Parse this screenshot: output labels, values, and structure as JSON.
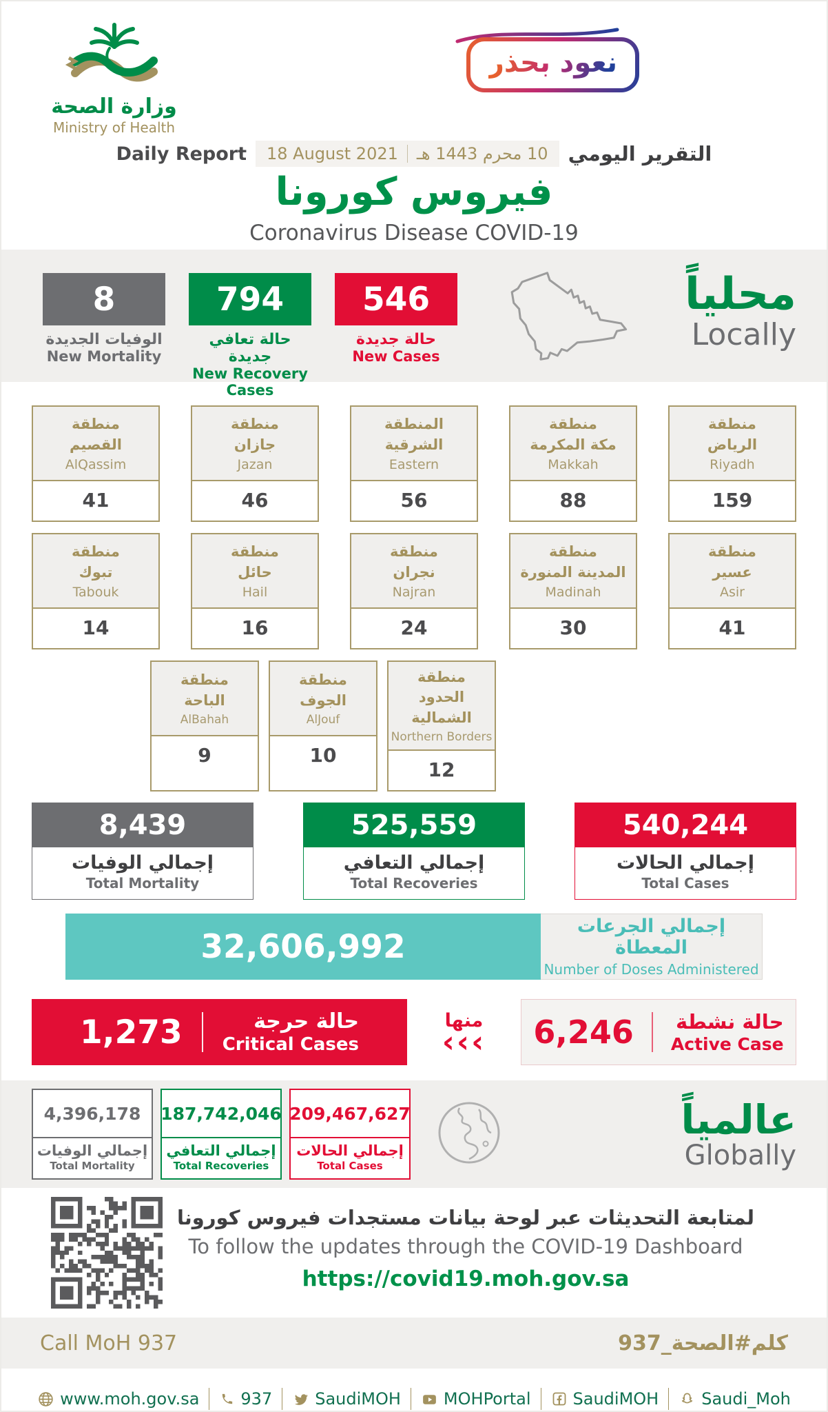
{
  "colors": {
    "green": "#008C49",
    "red": "#E20E35",
    "gray": "#6D6E71",
    "gold": "#A3925F",
    "teal": "#5EC7C1"
  },
  "header": {
    "logo_ar": "وزارة الصحة",
    "logo_en": "Ministry of Health",
    "badge": "نعود بحذر",
    "report_label_en": "Daily Report",
    "date_en": "18 August 2021",
    "date_hijri": "10 محرم 1443 هـ",
    "report_label_ar": "التقرير اليومي",
    "title_ar": "فيروس كورونا",
    "title_en": "Coronavirus Disease COVID-19"
  },
  "locally": {
    "heading_ar": "محلياً",
    "heading_en": "Locally",
    "stats": [
      {
        "value": "8",
        "label_ar": "الوفيات الجديدة",
        "label_en": "New Mortality",
        "color": "#6D6E71"
      },
      {
        "value": "794",
        "label_ar": "حالة تعافي جديدة",
        "label_en": "New Recovery Cases",
        "color": "#008C49"
      },
      {
        "value": "546",
        "label_ar": "حالة جديدة",
        "label_en": "New Cases",
        "color": "#E20E35"
      }
    ]
  },
  "regions": {
    "row1": [
      {
        "ar1": "منطقة",
        "ar2": "القصيم",
        "en": "AlQassim",
        "value": "41"
      },
      {
        "ar1": "منطقة",
        "ar2": "جازان",
        "en": "Jazan",
        "value": "46"
      },
      {
        "ar1": "المنطقة",
        "ar2": "الشرقية",
        "en": "Eastern",
        "value": "56"
      },
      {
        "ar1": "منطقة",
        "ar2": "مكة المكرمة",
        "en": "Makkah",
        "value": "88"
      },
      {
        "ar1": "منطقة",
        "ar2": "الرياض",
        "en": "Riyadh",
        "value": "159"
      }
    ],
    "row2": [
      {
        "ar1": "منطقة",
        "ar2": "تبوك",
        "en": "Tabouk",
        "value": "14"
      },
      {
        "ar1": "منطقة",
        "ar2": "حائل",
        "en": "Hail",
        "value": "16"
      },
      {
        "ar1": "منطقة",
        "ar2": "نجران",
        "en": "Najran",
        "value": "24"
      },
      {
        "ar1": "منطقة",
        "ar2": "المدينة المنورة",
        "en": "Madinah",
        "value": "30"
      },
      {
        "ar1": "منطقة",
        "ar2": "عسير",
        "en": "Asir",
        "value": "41"
      }
    ],
    "row3": [
      {
        "ar1": "منطقة",
        "ar2": "الباحة",
        "en": "AlBahah",
        "value": "9"
      },
      {
        "ar1": "منطقة",
        "ar2": "الجوف",
        "en": "AlJouf",
        "value": "10"
      },
      {
        "ar1": "منطقة",
        "ar2": "الحدود الشمالية",
        "en": "Northern Borders",
        "value": "12"
      }
    ]
  },
  "totals": [
    {
      "value": "8,439",
      "label_ar": "إجمالي الوفيات",
      "label_en": "Total Mortality",
      "color": "#6D6E71"
    },
    {
      "value": "525,559",
      "label_ar": "إجمالي التعافي",
      "label_en": "Total Recoveries",
      "color": "#008C49"
    },
    {
      "value": "540,244",
      "label_ar": "إجمالي الحالات",
      "label_en": "Total Cases",
      "color": "#E20E35"
    }
  ],
  "doses": {
    "value": "32,606,992",
    "label_ar": "إجمالي الجرعات المعطاة",
    "label_en": "Number of Doses Administered"
  },
  "critical": {
    "value": "1,273",
    "label_ar": "حالة حرجة",
    "label_en": "Critical Cases"
  },
  "minha": {
    "label_ar": "منها",
    "chevrons": "‹‹‹"
  },
  "active": {
    "value": "6,246",
    "label_ar": "حالة نشطة",
    "label_en": "Active Case"
  },
  "globally": {
    "heading_ar": "عالمياً",
    "heading_en": "Globally",
    "stats": [
      {
        "value": "4,396,178",
        "label_ar": "إجمالي الوفيات",
        "label_en": "Total Mortality",
        "color": "#6D6E71"
      },
      {
        "value": "187,742,046",
        "label_ar": "إجمالي التعافي",
        "label_en": "Total Recoveries",
        "color": "#008C49"
      },
      {
        "value": "209,467,627",
        "label_ar": "إجمالي الحالات",
        "label_en": "Total Cases",
        "color": "#E20E35"
      }
    ]
  },
  "dashboard": {
    "line_ar": "لمتابعة التحديثات عبر لوحة بيانات مستجدات فيروس كورونا",
    "line_en": "To follow the updates through the COVID-19 Dashboard",
    "url": "https://covid19.moh.gov.sa"
  },
  "callband": {
    "en": "Call MoH 937",
    "ar": "كلم#الصحة_937"
  },
  "footer": {
    "items": [
      {
        "icon": "globe-icon",
        "text": "www.moh.gov.sa"
      },
      {
        "icon": "phone-icon",
        "text": "937"
      },
      {
        "icon": "twitter-icon",
        "text": "SaudiMOH"
      },
      {
        "icon": "youtube-icon",
        "text": "MOHPortal"
      },
      {
        "icon": "facebook-icon",
        "text": "SaudiMOH"
      },
      {
        "icon": "snapchat-icon",
        "text": "Saudi_Moh"
      }
    ]
  }
}
